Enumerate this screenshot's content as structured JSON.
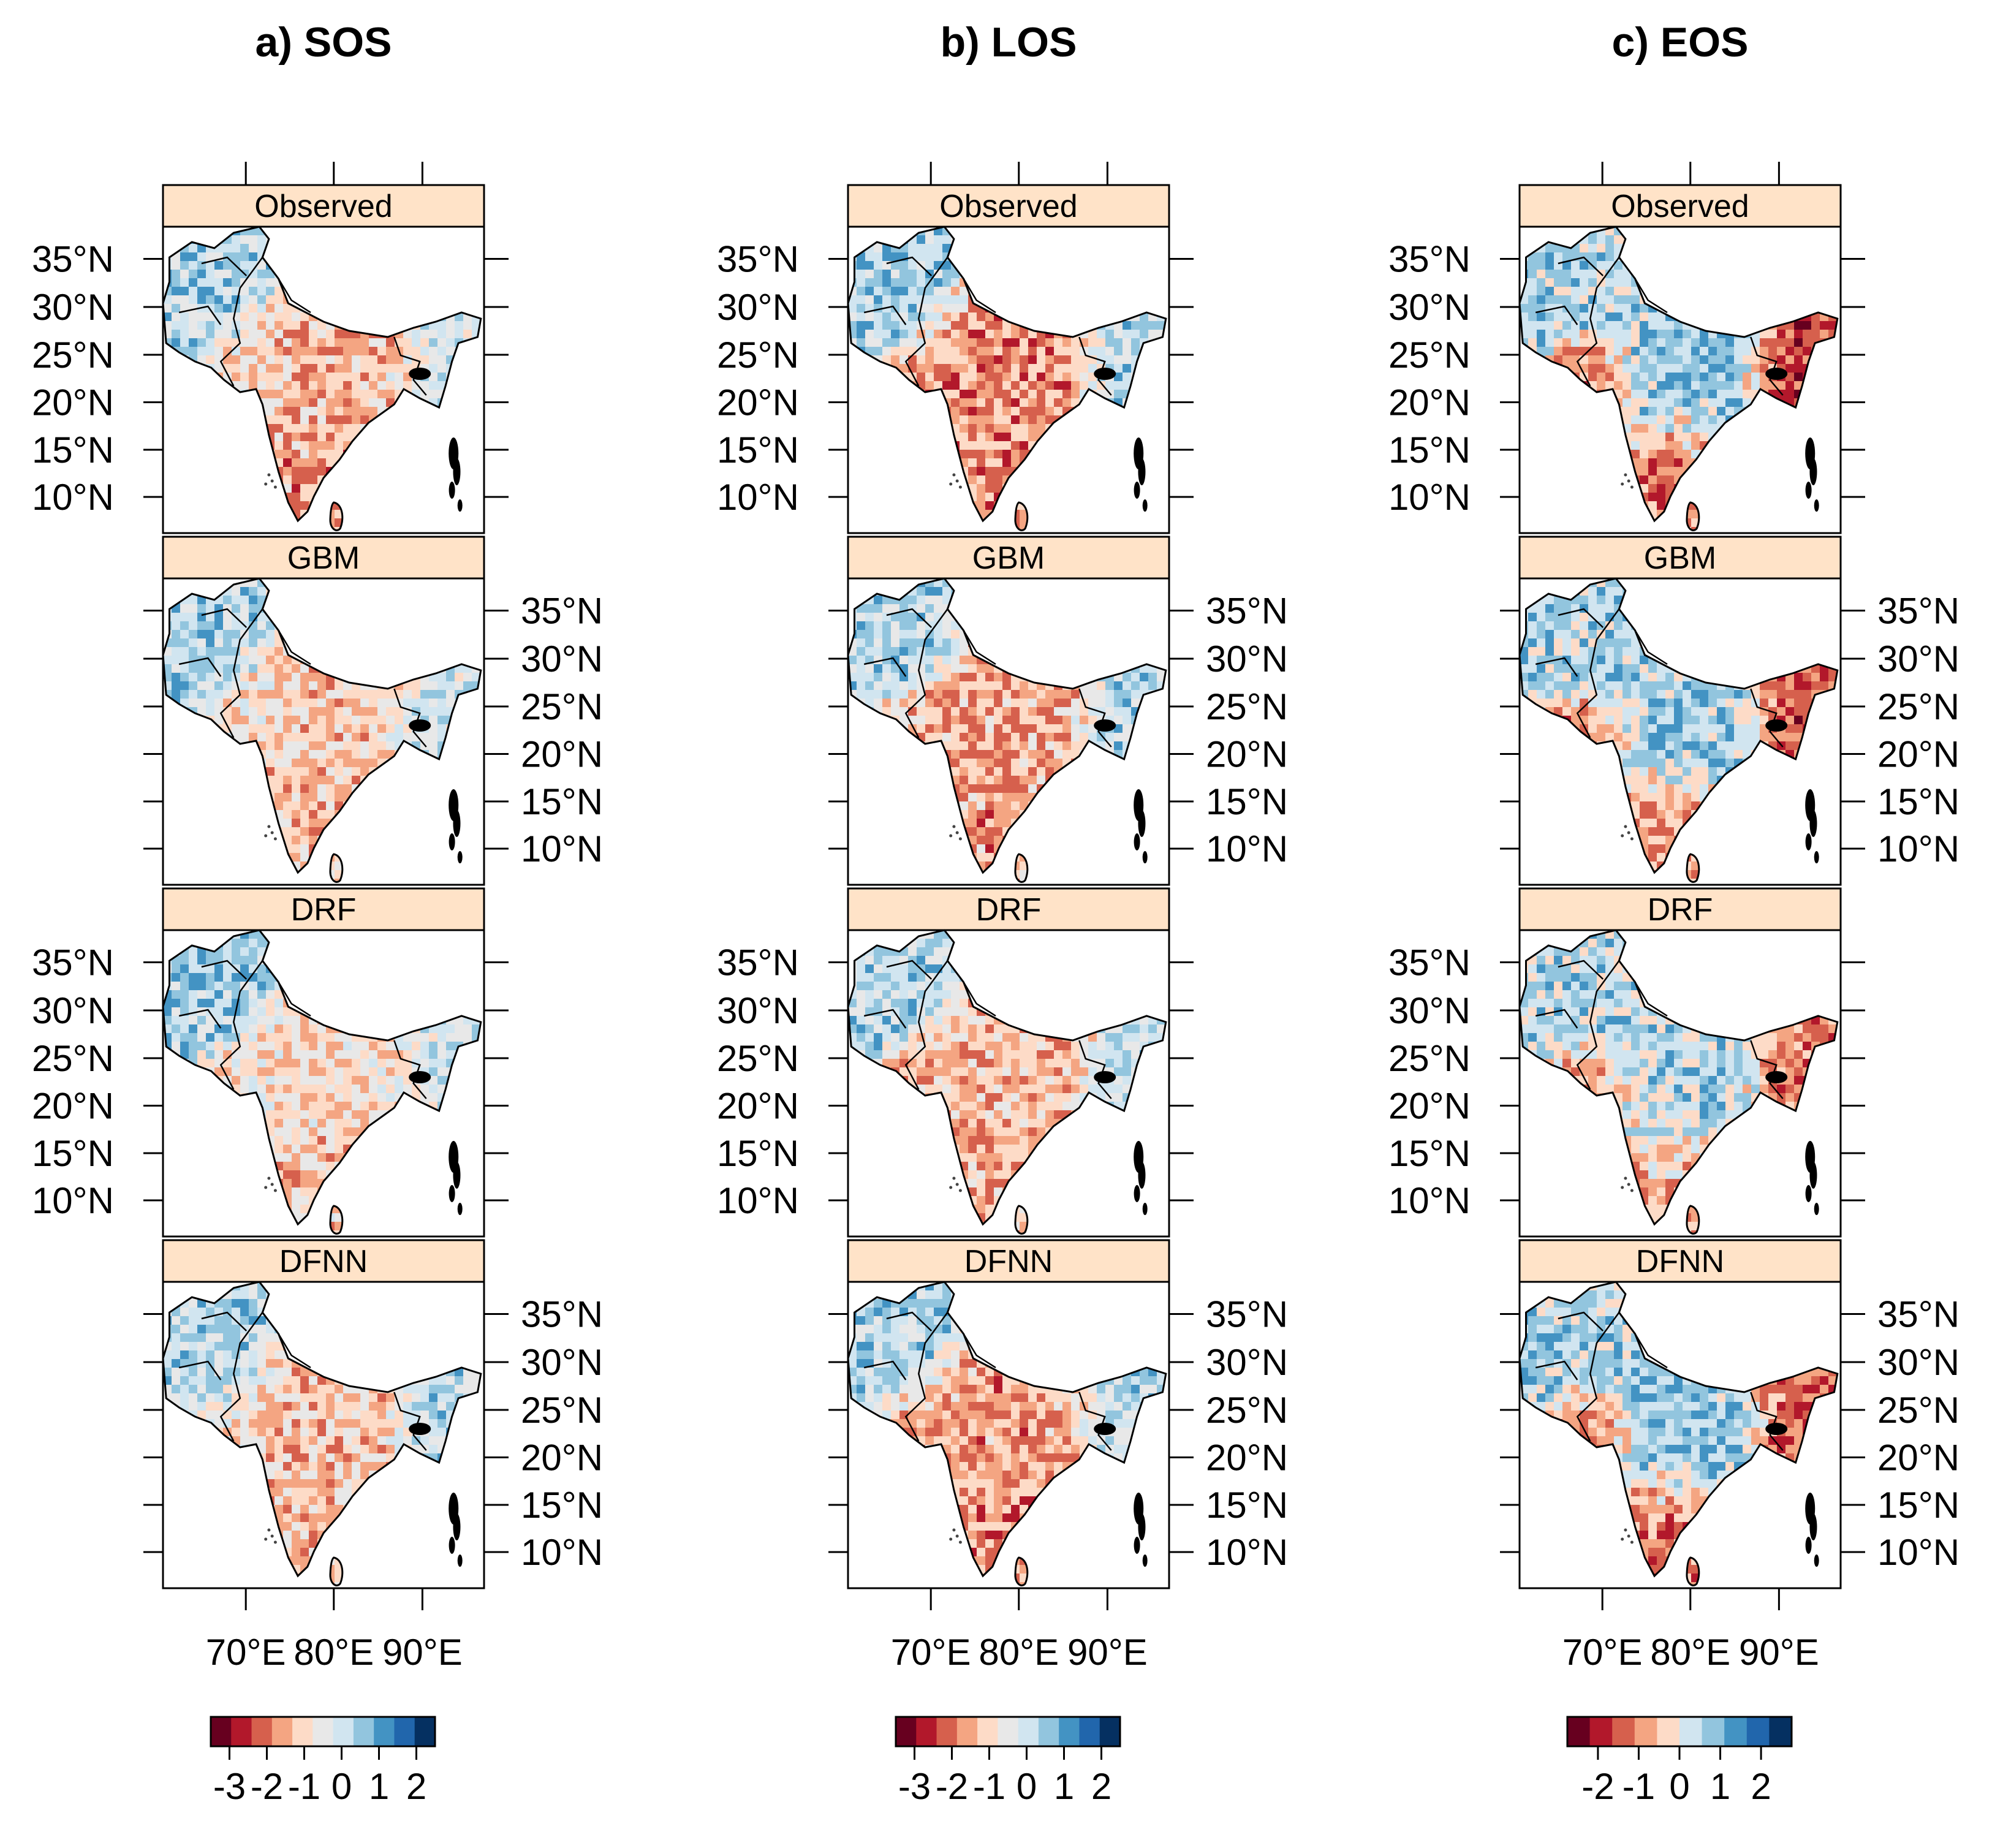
{
  "figure": {
    "colors": {
      "strip": "#FFE3C8",
      "diverging": [
        "#67001F",
        "#B2182B",
        "#D6604D",
        "#F4A582",
        "#FDDBC7",
        "#E8E8E8",
        "#D1E5F0",
        "#92C5DE",
        "#4393C3",
        "#2166AC",
        "#053061"
      ]
    },
    "latitude_ticks": [
      "35°N",
      "30°N",
      "25°N",
      "20°N",
      "15°N",
      "10°N"
    ],
    "longitude_ticks": [
      "70°E",
      "80°E",
      "90°E"
    ],
    "panels": [
      "Observed",
      "GBM",
      "DRF",
      "DFNN"
    ],
    "columns": [
      {
        "title": "a) SOS",
        "colorbar": {
          "labels": [
            "-3",
            "-2",
            "-1",
            "0",
            "1",
            "2"
          ],
          "n_colors": 11
        },
        "bias": [
          {
            "nw": 0.8,
            "center": -0.9,
            "south": -1.1,
            "east": 0.5,
            "coast": -0.3
          },
          {
            "nw": 0.7,
            "center": -0.6,
            "south": -0.8,
            "east": 0.5,
            "coast": -0.2
          },
          {
            "nw": 0.9,
            "center": -0.5,
            "south": -0.6,
            "east": 0.4,
            "coast": -0.2
          },
          {
            "nw": 0.8,
            "center": -0.7,
            "south": -0.8,
            "east": 0.6,
            "coast": -0.3
          }
        ]
      },
      {
        "title": "b) LOS",
        "colorbar": {
          "labels": [
            "-3",
            "-2",
            "-1",
            "0",
            "1",
            "2"
          ],
          "n_colors": 11
        },
        "bias": [
          {
            "nw": 0.9,
            "center": -1.2,
            "south": -1.3,
            "east": 0.8,
            "coast": -1.0
          },
          {
            "nw": 0.8,
            "center": -1.0,
            "south": -1.1,
            "east": 0.7,
            "coast": -0.9
          },
          {
            "nw": 0.7,
            "center": -0.9,
            "south": -0.9,
            "east": 0.6,
            "coast": -0.8
          },
          {
            "nw": 0.8,
            "center": -1.1,
            "south": -1.2,
            "east": 0.7,
            "coast": -1.0
          }
        ]
      },
      {
        "title": "c) EOS",
        "colorbar": {
          "labels": [
            "-2",
            "-1",
            "0",
            "1",
            "2"
          ],
          "n_colors": 10
        },
        "bias": [
          {
            "nw": 0.7,
            "center": 0.8,
            "south": -1.3,
            "east": -1.8,
            "coast": -1.5
          },
          {
            "nw": 0.6,
            "center": 0.7,
            "south": -1.1,
            "east": -1.6,
            "coast": -1.3
          },
          {
            "nw": 0.5,
            "center": 0.6,
            "south": -0.7,
            "east": -1.3,
            "coast": -0.9
          },
          {
            "nw": 0.6,
            "center": 0.8,
            "south": -1.2,
            "east": -1.6,
            "coast": -1.4
          }
        ]
      }
    ]
  }
}
